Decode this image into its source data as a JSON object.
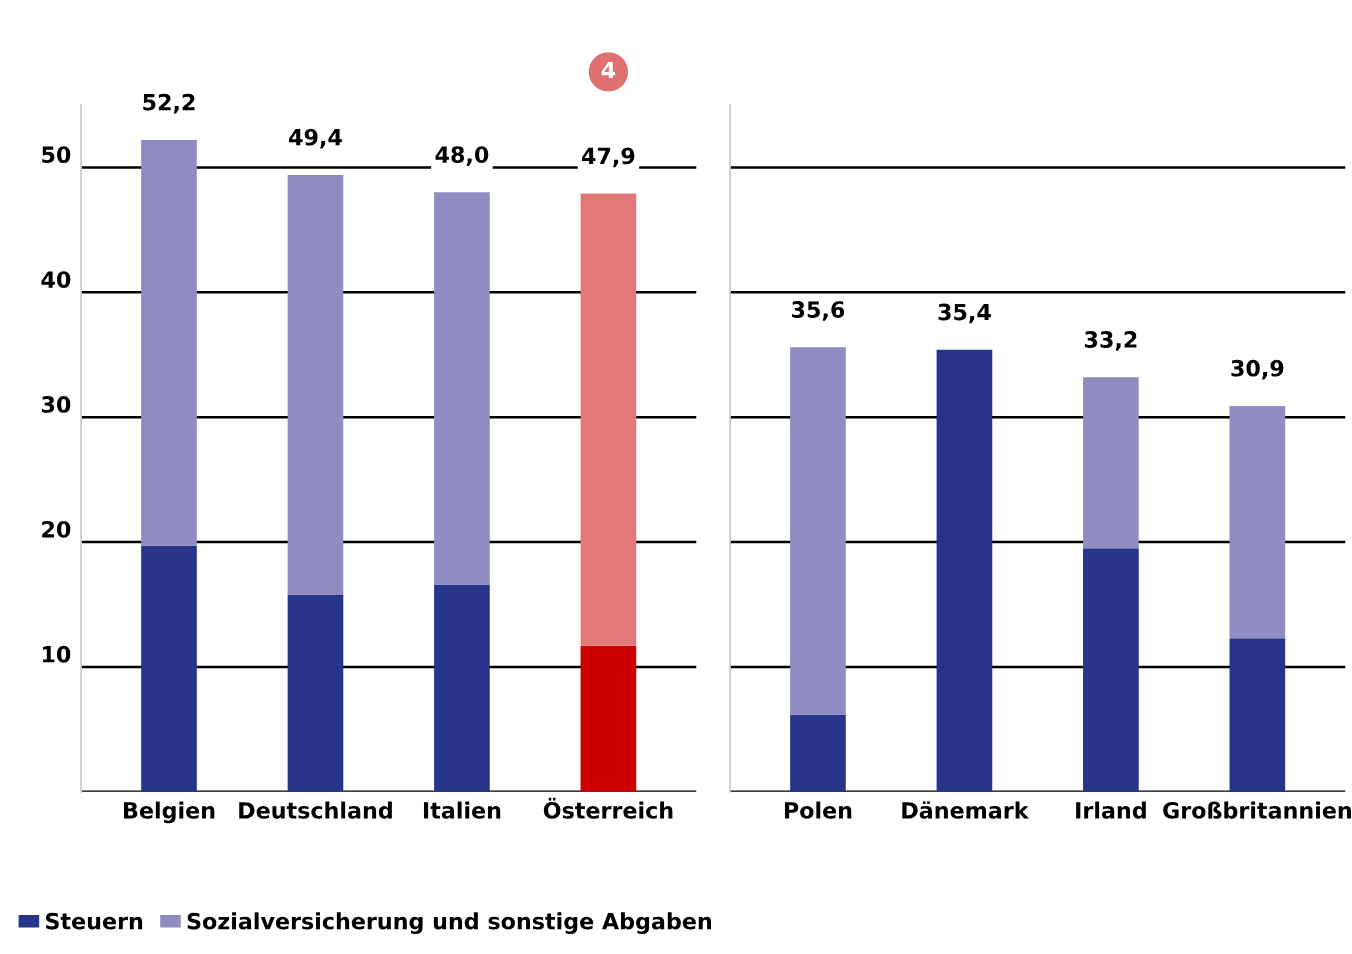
{
  "chart_data": [
    {
      "type": "bar",
      "stacked": true,
      "categories": [
        "Belgien",
        "Deutschland",
        "Italien",
        "Österreich"
      ],
      "series": [
        {
          "name": "Steuern",
          "color": "#26348a",
          "colors": [
            "#26348a",
            "#26348a",
            "#26348a",
            "#cc0000"
          ],
          "values": [
            19.7,
            15.8,
            16.6,
            11.7
          ]
        },
        {
          "name": "Sozialversicherung und sonstige Abgaben",
          "color": "#8e8cc0",
          "colors": [
            "#8e8cc0",
            "#8e8cc0",
            "#8e8cc0",
            "#e37878"
          ],
          "values": [
            32.5,
            33.6,
            31.4,
            36.2
          ]
        }
      ],
      "totals": [
        "52,2",
        "49,4",
        "48,0",
        "47,9"
      ],
      "ylim": [
        0,
        55
      ],
      "yticks": [
        {
          "value": 0,
          "label": null
        },
        10,
        20,
        30,
        40,
        50
      ],
      "grid": "y",
      "legend": "bottom",
      "annotations": [
        "4"
      ]
    },
    {
      "type": "bar",
      "stacked": true,
      "categories": [
        "Polen",
        "Dänemark",
        "Irland",
        "Großbritannien"
      ],
      "series": [
        {
          "color": "#26348a",
          "values": [
            6.2,
            35.4,
            19.5,
            12.3
          ]
        },
        {
          "color": "#8e8cc0",
          "values": [
            29.4,
            0,
            13.7,
            18.6
          ]
        }
      ],
      "totals": [
        "35,6",
        "35,4",
        "33,2",
        "30,9"
      ],
      "ylim": [
        0,
        55
      ],
      "yticks": [
        {
          "value": 0,
          "label": null
        },
        10,
        20,
        30,
        40,
        50
      ],
      "grid": "y",
      "tick_labels": "x"
    }
  ]
}
